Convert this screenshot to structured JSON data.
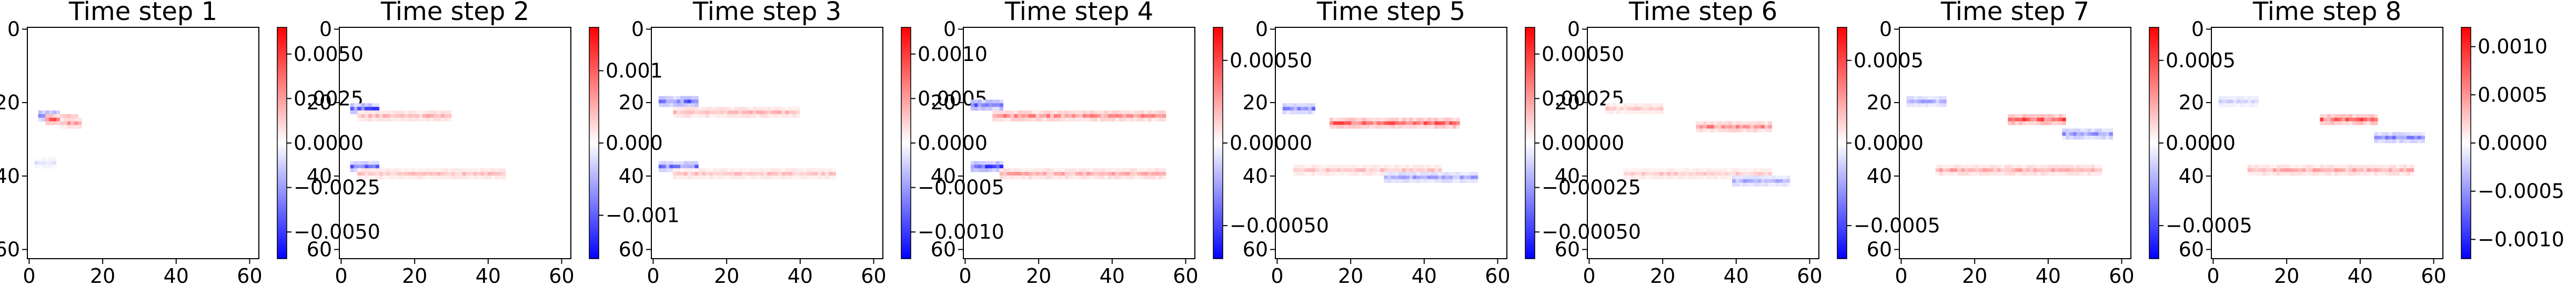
{
  "chart_data": [
    {
      "type": "heatmap",
      "title": "Time step 1",
      "x_ticks": [
        "0",
        "20",
        "40",
        "60"
      ],
      "y_ticks": [
        "0",
        "20",
        "40",
        "60"
      ],
      "xlim": [
        0,
        63
      ],
      "ylim": [
        63,
        0
      ],
      "colormap": "bwr",
      "colorbar_range": [
        -0.0065,
        0.0065
      ],
      "colorbar_ticks": [
        0.005,
        0.0025,
        0.0,
        -0.0025,
        -0.005
      ],
      "colorbar_tick_labels": [
        "0.0050",
        "0.0025",
        "0.0000",
        "−0.0025",
        "−0.0050"
      ],
      "features": [
        {
          "row": 24,
          "cols": [
            3,
            8
          ],
          "value": -0.006
        },
        {
          "row": 25,
          "cols": [
            5,
            13
          ],
          "value": 0.005
        },
        {
          "row": 26,
          "cols": [
            9,
            14
          ],
          "value": 0.003
        },
        {
          "row": 37,
          "cols": [
            2,
            7
          ],
          "value": -0.001
        }
      ]
    },
    {
      "type": "heatmap",
      "title": "Time step 2",
      "x_ticks": [
        "0",
        "20",
        "40",
        "60"
      ],
      "y_ticks": [
        "0",
        "20",
        "40",
        "60"
      ],
      "xlim": [
        0,
        63
      ],
      "ylim": [
        63,
        0
      ],
      "colormap": "bwr",
      "colorbar_range": [
        -0.0016,
        0.0016
      ],
      "colorbar_ticks": [
        0.001,
        0.0,
        -0.001
      ],
      "colorbar_tick_labels": [
        "0.001",
        "0.000",
        "−0.001"
      ],
      "features": [
        {
          "row": 22,
          "cols": [
            3,
            10
          ],
          "value": -0.0014
        },
        {
          "row": 24,
          "cols": [
            5,
            30
          ],
          "value": 0.0006
        },
        {
          "row": 38,
          "cols": [
            3,
            10
          ],
          "value": -0.0012
        },
        {
          "row": 40,
          "cols": [
            5,
            45
          ],
          "value": 0.0005
        }
      ]
    },
    {
      "type": "heatmap",
      "title": "Time step 3",
      "x_ticks": [
        "0",
        "20",
        "40",
        "60"
      ],
      "y_ticks": [
        "0",
        "20",
        "40",
        "60"
      ],
      "xlim": [
        0,
        63
      ],
      "ylim": [
        63,
        0
      ],
      "colormap": "bwr",
      "colorbar_range": [
        -0.0013,
        0.0013
      ],
      "colorbar_ticks": [
        0.001,
        0.0005,
        0.0,
        -0.0005,
        -0.001
      ],
      "colorbar_tick_labels": [
        "0.0010",
        "0.0005",
        "0.0000",
        "−0.0005",
        "−0.0010"
      ],
      "features": [
        {
          "row": 20,
          "cols": [
            2,
            12
          ],
          "value": -0.001
        },
        {
          "row": 23,
          "cols": [
            6,
            40
          ],
          "value": 0.0005
        },
        {
          "row": 38,
          "cols": [
            2,
            12
          ],
          "value": -0.0009
        },
        {
          "row": 40,
          "cols": [
            6,
            50
          ],
          "value": 0.0004
        }
      ]
    },
    {
      "type": "heatmap",
      "title": "Time step 4",
      "x_ticks": [
        "0",
        "20",
        "40",
        "60"
      ],
      "y_ticks": [
        "0",
        "20",
        "40",
        "60"
      ],
      "xlim": [
        0,
        63
      ],
      "ylim": [
        63,
        0
      ],
      "colormap": "bwr",
      "colorbar_range": [
        -0.0007,
        0.0007
      ],
      "colorbar_ticks": [
        0.0005,
        0.0,
        -0.0005
      ],
      "colorbar_tick_labels": [
        "0.00050",
        "0.00000",
        "−0.00050"
      ],
      "features": [
        {
          "row": 21,
          "cols": [
            2,
            10
          ],
          "value": -0.0006
        },
        {
          "row": 24,
          "cols": [
            8,
            55
          ],
          "value": 0.0004
        },
        {
          "row": 38,
          "cols": [
            2,
            10
          ],
          "value": -0.0006
        },
        {
          "row": 40,
          "cols": [
            10,
            55
          ],
          "value": 0.0003
        }
      ]
    },
    {
      "type": "heatmap",
      "title": "Time step 5",
      "x_ticks": [
        "0",
        "20",
        "40",
        "60"
      ],
      "y_ticks": [
        "0",
        "20",
        "40",
        "60"
      ],
      "xlim": [
        0,
        63
      ],
      "ylim": [
        63,
        0
      ],
      "colormap": "bwr",
      "colorbar_range": [
        -0.00065,
        0.00065
      ],
      "colorbar_ticks": [
        0.0005,
        0.00025,
        0.0,
        -0.00025,
        -0.0005
      ],
      "colorbar_tick_labels": [
        "0.00050",
        "0.00025",
        "0.00000",
        "−0.00025",
        "−0.00050"
      ],
      "features": [
        {
          "row": 22,
          "cols": [
            2,
            10
          ],
          "value": -0.0004
        },
        {
          "row": 26,
          "cols": [
            15,
            50
          ],
          "value": 0.0005
        },
        {
          "row": 39,
          "cols": [
            5,
            45
          ],
          "value": 0.0002
        },
        {
          "row": 41,
          "cols": [
            30,
            55
          ],
          "value": -0.0003
        }
      ]
    },
    {
      "type": "heatmap",
      "title": "Time step 6",
      "x_ticks": [
        "0",
        "20",
        "40",
        "60"
      ],
      "y_ticks": [
        "0",
        "20",
        "40",
        "60"
      ],
      "xlim": [
        0,
        63
      ],
      "ylim": [
        63,
        0
      ],
      "colormap": "bwr",
      "colorbar_range": [
        -0.0007,
        0.0007
      ],
      "colorbar_ticks": [
        0.0005,
        0.0,
        -0.0005
      ],
      "colorbar_tick_labels": [
        "0.0005",
        "0.0000",
        "−0.0005"
      ],
      "features": [
        {
          "row": 22,
          "cols": [
            5,
            20
          ],
          "value": 0.0002
        },
        {
          "row": 27,
          "cols": [
            30,
            50
          ],
          "value": 0.0004
        },
        {
          "row": 40,
          "cols": [
            10,
            50
          ],
          "value": 0.0002
        },
        {
          "row": 42,
          "cols": [
            40,
            55
          ],
          "value": -0.0003
        }
      ]
    },
    {
      "type": "heatmap",
      "title": "Time step 7",
      "x_ticks": [
        "0",
        "20",
        "40",
        "60"
      ],
      "y_ticks": [
        "0",
        "20",
        "40",
        "60"
      ],
      "xlim": [
        0,
        63
      ],
      "ylim": [
        63,
        0
      ],
      "colormap": "bwr",
      "colorbar_range": [
        -0.0007,
        0.0007
      ],
      "colorbar_ticks": [
        0.0005,
        0.0,
        -0.0005
      ],
      "colorbar_tick_labels": [
        "0.0005",
        "0.0000",
        "−0.0005"
      ],
      "features": [
        {
          "row": 20,
          "cols": [
            2,
            12
          ],
          "value": -0.0003
        },
        {
          "row": 25,
          "cols": [
            30,
            45
          ],
          "value": 0.0006
        },
        {
          "row": 29,
          "cols": [
            45,
            58
          ],
          "value": -0.0004
        },
        {
          "row": 39,
          "cols": [
            10,
            55
          ],
          "value": 0.0003
        }
      ]
    },
    {
      "type": "heatmap",
      "title": "Time step 8",
      "x_ticks": [
        "0",
        "20",
        "40",
        "60"
      ],
      "y_ticks": [
        "0",
        "20",
        "40",
        "60"
      ],
      "xlim": [
        0,
        63
      ],
      "ylim": [
        63,
        0
      ],
      "colormap": "bwr",
      "colorbar_range": [
        -0.0012,
        0.0012
      ],
      "colorbar_ticks": [
        0.001,
        0.0005,
        0.0,
        -0.0005,
        -0.001
      ],
      "colorbar_tick_labels": [
        "0.0010",
        "0.0005",
        "0.0000",
        "−0.0005",
        "−0.0010"
      ],
      "features": [
        {
          "row": 20,
          "cols": [
            2,
            12
          ],
          "value": -0.0003
        },
        {
          "row": 25,
          "cols": [
            30,
            45
          ],
          "value": 0.001
        },
        {
          "row": 30,
          "cols": [
            45,
            58
          ],
          "value": -0.0007
        },
        {
          "row": 39,
          "cols": [
            10,
            55
          ],
          "value": 0.0005
        }
      ]
    }
  ]
}
